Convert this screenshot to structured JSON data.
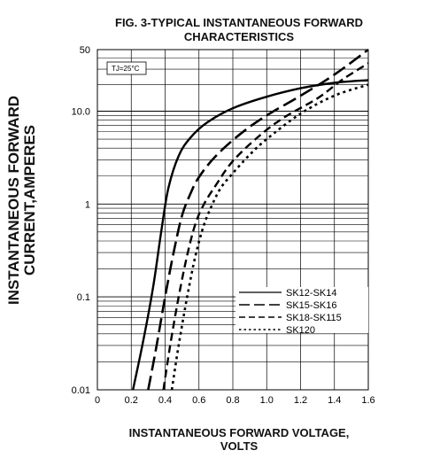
{
  "chart_data": {
    "type": "line",
    "title_line1": "FIG. 3-TYPICAL INSTANTANEOUS FORWARD",
    "title_line2": "CHARACTERISTICS",
    "ylabel_line1": "INSTANTANEOUS FORWARD",
    "ylabel_line2": "CURRENT,AMPERES",
    "xlabel_line1": "INSTANTANEOUS FORWARD VOLTAGE,",
    "xlabel_line2": "VOLTS",
    "annotation": "TJ=25°C",
    "xlim": [
      0,
      1.6
    ],
    "ylim": [
      0.01,
      50
    ],
    "yscale": "log",
    "grid": true,
    "legend_position": "lower-right",
    "x_ticks": [
      "0",
      "0.2",
      "0.4",
      "0.6",
      "0.8",
      "1.0",
      "1.2",
      "1.4",
      "1.6"
    ],
    "y_ticks": [
      "0.01",
      "0.1",
      "1",
      "10.0",
      "50"
    ],
    "series": [
      {
        "name": "SK12-SK14",
        "dash": "solid",
        "x": [
          0.21,
          0.27,
          0.33,
          0.38,
          0.42,
          0.48,
          0.55,
          0.65,
          0.8,
          1.0,
          1.2,
          1.4,
          1.6
        ],
        "y": [
          0.01,
          0.033,
          0.13,
          0.55,
          1.5,
          3.3,
          5.2,
          7.6,
          10.8,
          14.6,
          18.2,
          21.0,
          22.5
        ]
      },
      {
        "name": "SK15-SK16",
        "dash": "long-dash",
        "x": [
          0.3,
          0.35,
          0.4,
          0.45,
          0.5,
          0.55,
          0.6,
          0.7,
          0.85,
          1.0,
          1.2,
          1.4,
          1.6
        ],
        "y": [
          0.01,
          0.03,
          0.1,
          0.3,
          0.75,
          1.3,
          1.95,
          3.3,
          5.8,
          9.0,
          15.0,
          26.0,
          50.0
        ]
      },
      {
        "name": "SK18-SK115",
        "dash": "dash",
        "x": [
          0.39,
          0.43,
          0.48,
          0.53,
          0.58,
          0.63,
          0.7,
          0.8,
          0.95,
          1.1,
          1.3,
          1.45,
          1.6
        ],
        "y": [
          0.01,
          0.03,
          0.1,
          0.28,
          0.62,
          1.0,
          1.6,
          2.9,
          5.3,
          8.5,
          14.0,
          23.0,
          35.0
        ]
      },
      {
        "name": "SK120",
        "dash": "dot",
        "x": [
          0.44,
          0.48,
          0.53,
          0.58,
          0.63,
          0.68,
          0.73,
          0.8,
          0.9,
          1.0,
          1.2,
          1.4,
          1.6
        ],
        "y": [
          0.01,
          0.03,
          0.1,
          0.28,
          0.6,
          1.0,
          1.5,
          2.15,
          3.4,
          5.0,
          9.4,
          15.0,
          20.0
        ]
      }
    ]
  }
}
